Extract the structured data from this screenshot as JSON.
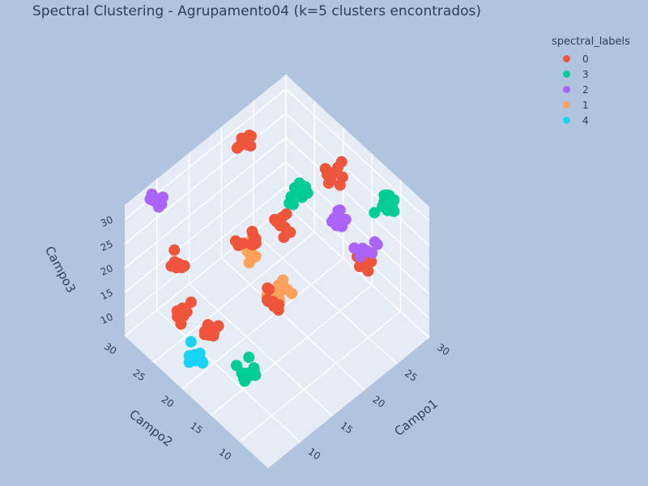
{
  "chart_data": {
    "type": "scatter",
    "title": "Spectral Clustering - Agrupamento04 (k=5 clusters encontrados)",
    "legend_title": "spectral_labels",
    "legend_position": "top-right",
    "axes": {
      "x": {
        "label": "Campo1",
        "range": [
          5,
          30
        ],
        "ticks": [
          "10",
          "15",
          "20",
          "25",
          "30"
        ]
      },
      "y": {
        "label": "Campo2",
        "range": [
          5,
          30
        ],
        "ticks": [
          "10",
          "15",
          "20",
          "25",
          "30"
        ]
      },
      "z": {
        "label": "Campo3",
        "range": [
          6,
          33
        ],
        "ticks": [
          "10",
          "15",
          "20",
          "25",
          "30"
        ]
      }
    },
    "grid": true,
    "series": [
      {
        "name": "0",
        "color": "#EF553B",
        "centers": [
          [
            10,
            26,
            20
          ],
          [
            10,
            10,
            30
          ],
          [
            10,
            21,
            12
          ],
          [
            10,
            26,
            10
          ],
          [
            25,
            10,
            22
          ],
          [
            26,
            26,
            11
          ],
          [
            27,
            18,
            29
          ],
          [
            21,
            27,
            32
          ],
          [
            15,
            20,
            26
          ]
        ],
        "points_per_center": 10
      },
      {
        "name": "3",
        "color": "#00CC96",
        "centers": [
          [
            28,
            11,
            29
          ],
          [
            24,
            21,
            25
          ],
          [
            10,
            14,
            11
          ]
        ],
        "points_per_center": 14
      },
      {
        "name": "2",
        "color": "#AB63FA",
        "centers": [
          [
            22,
            7,
            31
          ],
          [
            10,
            30,
            29
          ],
          [
            25,
            15,
            25
          ]
        ],
        "points_per_center": 9
      },
      {
        "name": "1",
        "color": "#FFA15A",
        "centers": [
          [
            20,
            20,
            10
          ],
          [
            17,
            22,
            19
          ]
        ],
        "points_per_center": 13
      },
      {
        "name": "4",
        "color": "#19D3F3",
        "centers": [
          [
            7,
            20,
            11
          ]
        ],
        "points_per_center": 15
      }
    ]
  }
}
